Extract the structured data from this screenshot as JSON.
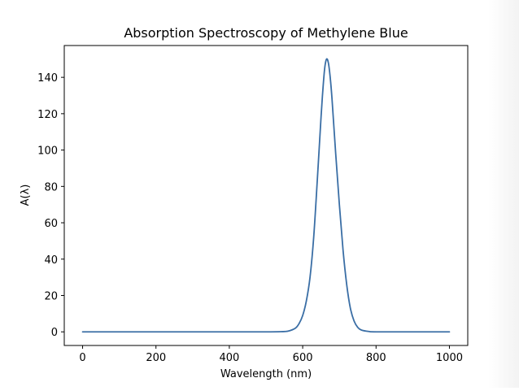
{
  "chart_data": {
    "type": "line",
    "title": "Absorption Spectroscopy of Methylene Blue",
    "xlabel": "Wavelength (nm)",
    "ylabel": "A(λ)",
    "xlim": [
      -50,
      1050
    ],
    "ylim": [
      -7.5,
      157.5
    ],
    "x_ticks": [
      0,
      200,
      400,
      600,
      800,
      1000
    ],
    "y_ticks": [
      0,
      20,
      40,
      60,
      80,
      100,
      120,
      140
    ],
    "grid": false,
    "legend": "none",
    "series": [
      {
        "color": "#3a6ea5",
        "x": [
          0,
          100,
          200,
          300,
          400,
          500,
          540,
          560,
          580,
          590,
          600,
          610,
          620,
          630,
          640,
          650,
          655,
          660,
          665,
          670,
          675,
          680,
          690,
          700,
          710,
          720,
          730,
          740,
          750,
          760,
          780,
          800,
          900,
          1000
        ],
        "y": [
          0,
          0,
          0,
          0,
          0,
          0,
          0.1,
          0.4,
          2,
          4.5,
          9,
          17,
          30,
          52,
          84,
          118,
          133,
          145,
          150,
          148,
          140,
          128,
          98,
          70,
          45,
          26,
          13,
          6,
          2.5,
          1,
          0.2,
          0,
          0,
          0
        ]
      }
    ]
  }
}
